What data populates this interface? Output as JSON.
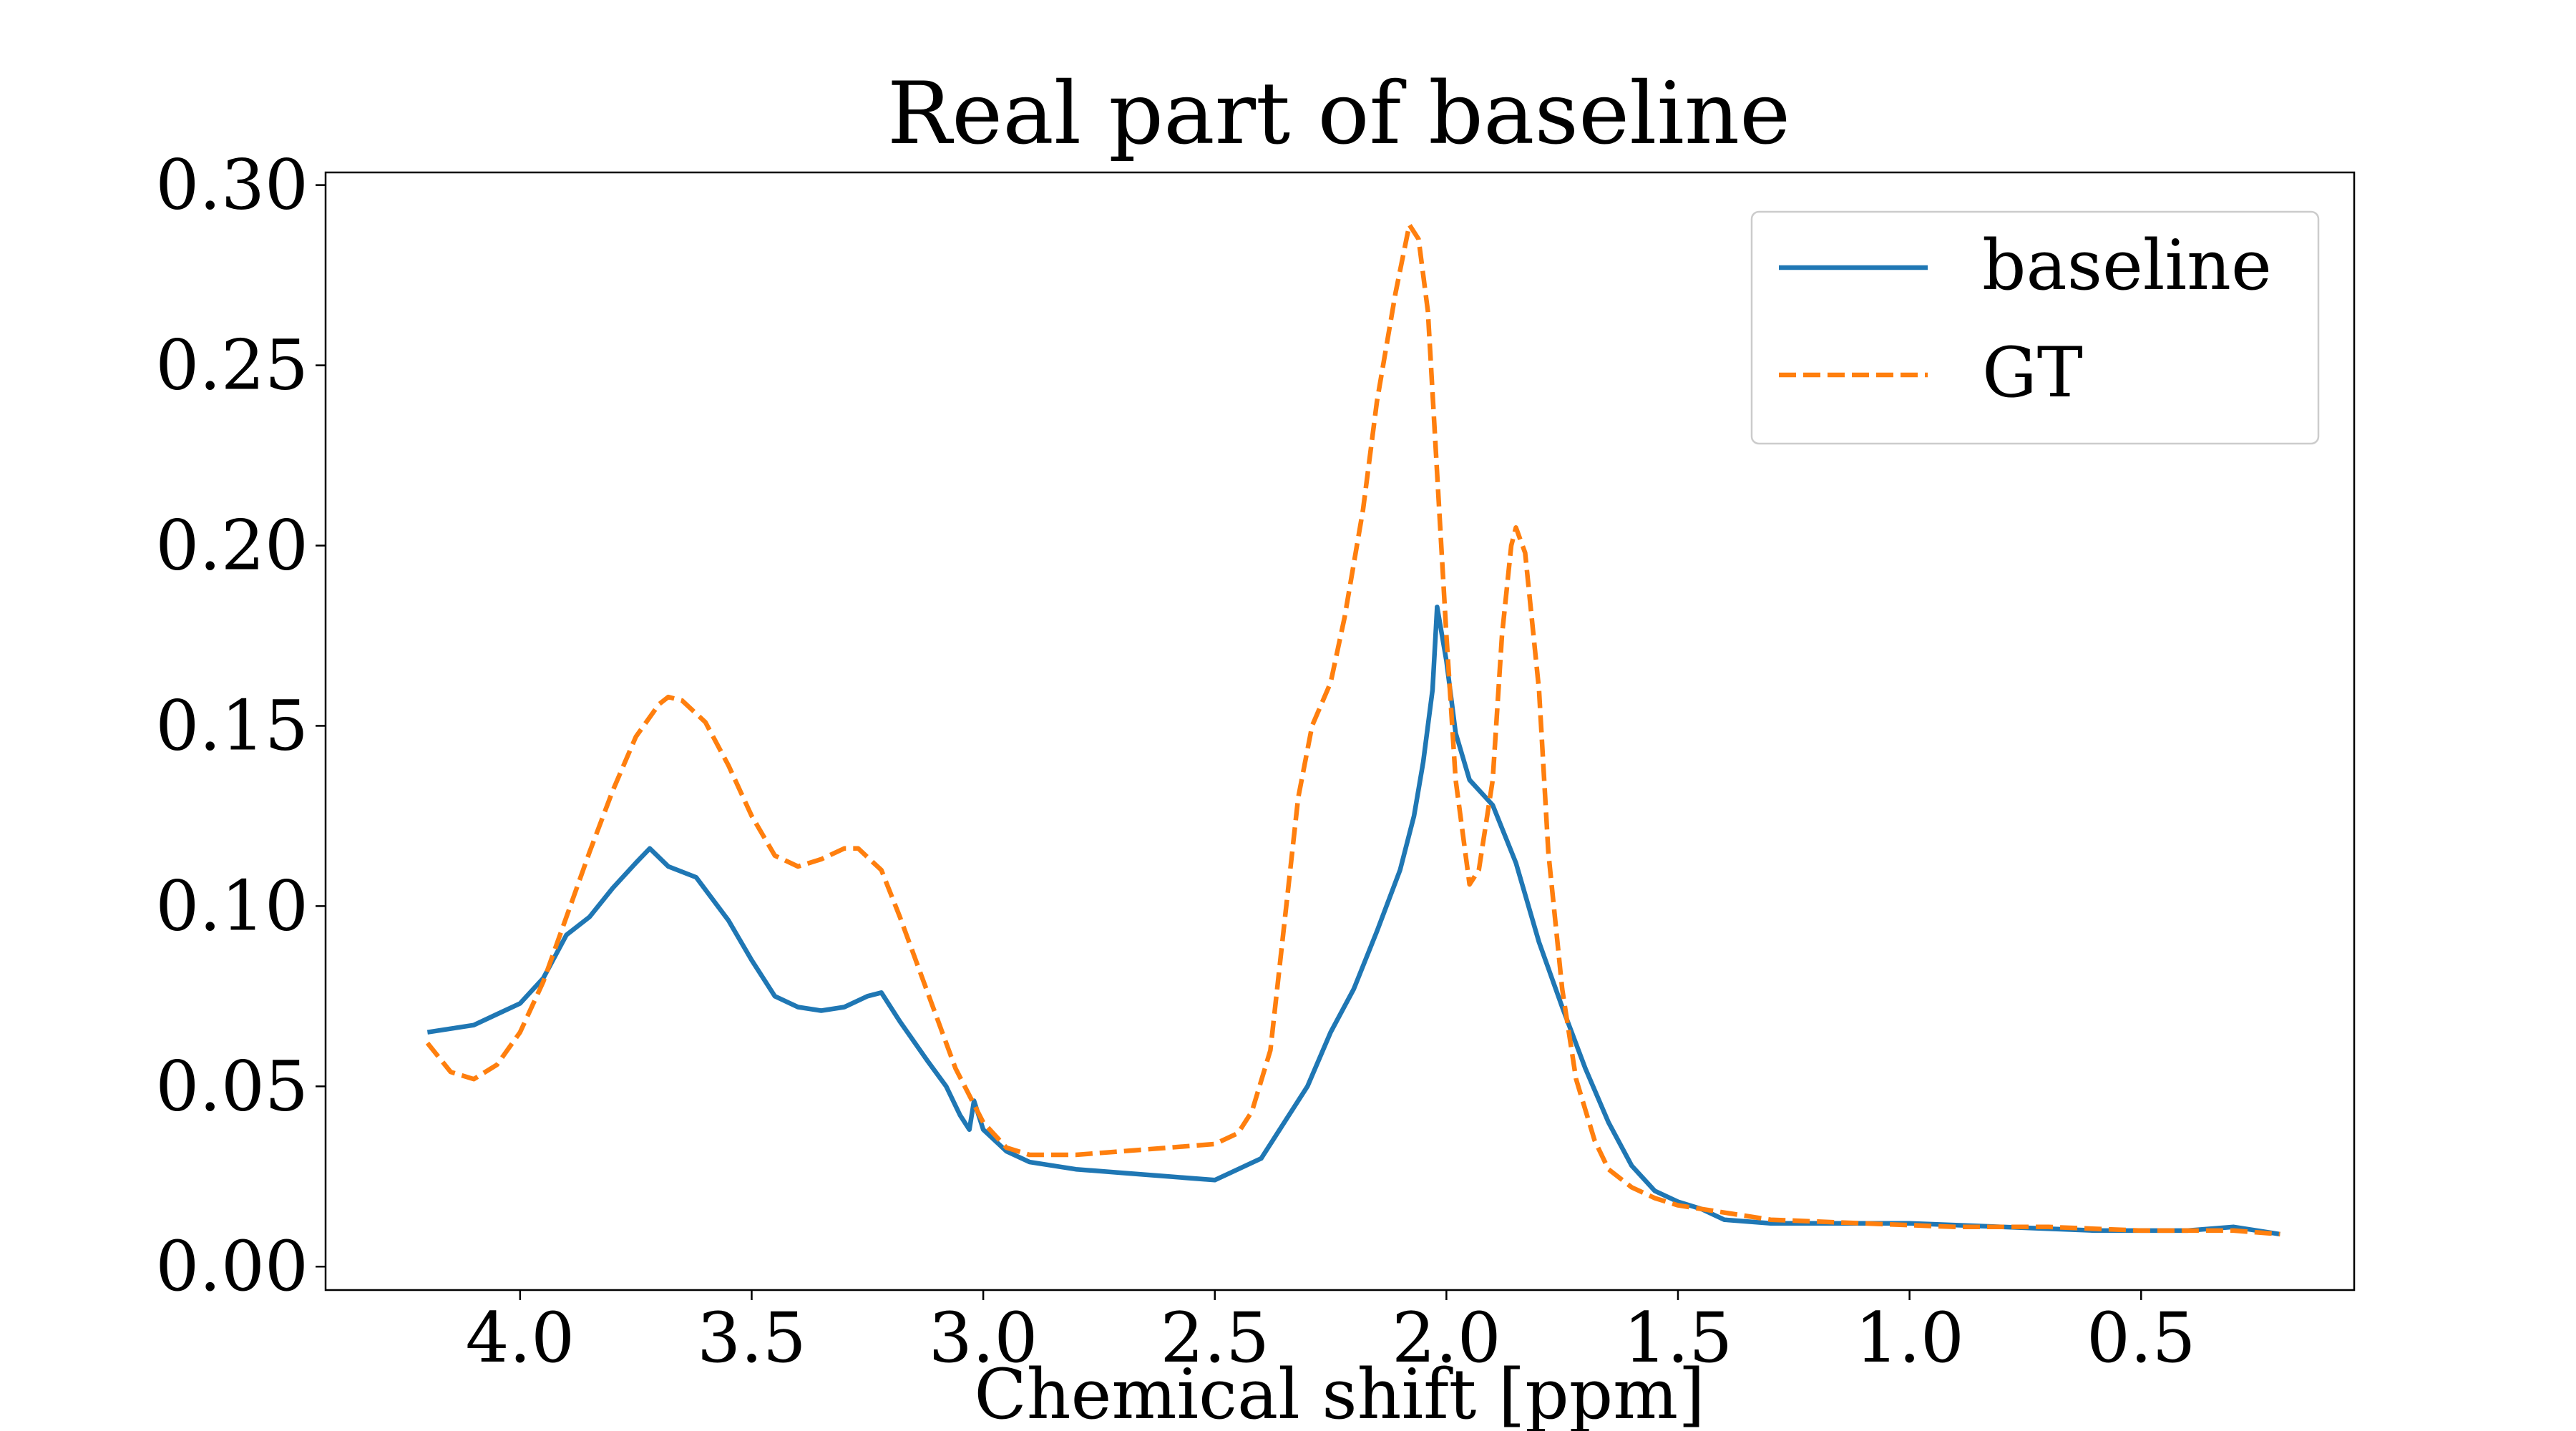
{
  "chart_data": {
    "type": "line",
    "title": "Real part of baseline",
    "xlabel": "Chemical shift [ppm]",
    "ylabel": "",
    "xlim": [
      4.42,
      0.04
    ],
    "ylim": [
      -0.0065,
      0.3035
    ],
    "x_reversed": true,
    "grid": false,
    "legend_position": "top-right",
    "xticks": [
      4.0,
      3.5,
      3.0,
      2.5,
      2.0,
      1.5,
      1.0,
      0.5
    ],
    "xtick_labels": [
      "4.0",
      "3.5",
      "3.0",
      "2.5",
      "2.0",
      "1.5",
      "1.0",
      "0.5"
    ],
    "yticks": [
      0.0,
      0.05,
      0.1,
      0.15,
      0.2,
      0.25,
      0.3
    ],
    "ytick_labels": [
      "0.00",
      "0.05",
      "0.10",
      "0.15",
      "0.20",
      "0.25",
      "0.30"
    ],
    "series": [
      {
        "name": "baseline",
        "color": "#1f77b4",
        "style": "solid",
        "points": [
          [
            4.2,
            0.065
          ],
          [
            4.15,
            0.066
          ],
          [
            4.1,
            0.067
          ],
          [
            4.05,
            0.07
          ],
          [
            4.0,
            0.073
          ],
          [
            3.95,
            0.08
          ],
          [
            3.9,
            0.092
          ],
          [
            3.85,
            0.097
          ],
          [
            3.8,
            0.105
          ],
          [
            3.75,
            0.112
          ],
          [
            3.72,
            0.116
          ],
          [
            3.68,
            0.111
          ],
          [
            3.62,
            0.108
          ],
          [
            3.55,
            0.096
          ],
          [
            3.5,
            0.085
          ],
          [
            3.45,
            0.075
          ],
          [
            3.4,
            0.072
          ],
          [
            3.35,
            0.071
          ],
          [
            3.3,
            0.072
          ],
          [
            3.25,
            0.075
          ],
          [
            3.22,
            0.076
          ],
          [
            3.18,
            0.068
          ],
          [
            3.12,
            0.057
          ],
          [
            3.08,
            0.05
          ],
          [
            3.05,
            0.042
          ],
          [
            3.03,
            0.038
          ],
          [
            3.02,
            0.046
          ],
          [
            3.0,
            0.038
          ],
          [
            2.95,
            0.032
          ],
          [
            2.9,
            0.029
          ],
          [
            2.8,
            0.027
          ],
          [
            2.7,
            0.026
          ],
          [
            2.6,
            0.025
          ],
          [
            2.5,
            0.024
          ],
          [
            2.45,
            0.027
          ],
          [
            2.4,
            0.03
          ],
          [
            2.35,
            0.04
          ],
          [
            2.3,
            0.05
          ],
          [
            2.25,
            0.065
          ],
          [
            2.2,
            0.077
          ],
          [
            2.15,
            0.093
          ],
          [
            2.1,
            0.11
          ],
          [
            2.07,
            0.125
          ],
          [
            2.05,
            0.14
          ],
          [
            2.03,
            0.16
          ],
          [
            2.02,
            0.183
          ],
          [
            2.0,
            0.168
          ],
          [
            1.98,
            0.148
          ],
          [
            1.95,
            0.135
          ],
          [
            1.9,
            0.128
          ],
          [
            1.85,
            0.112
          ],
          [
            1.8,
            0.09
          ],
          [
            1.75,
            0.072
          ],
          [
            1.7,
            0.055
          ],
          [
            1.65,
            0.04
          ],
          [
            1.6,
            0.028
          ],
          [
            1.55,
            0.021
          ],
          [
            1.5,
            0.018
          ],
          [
            1.45,
            0.016
          ],
          [
            1.4,
            0.013
          ],
          [
            1.3,
            0.012
          ],
          [
            1.2,
            0.012
          ],
          [
            1.0,
            0.012
          ],
          [
            0.8,
            0.011
          ],
          [
            0.6,
            0.01
          ],
          [
            0.4,
            0.01
          ],
          [
            0.3,
            0.011
          ],
          [
            0.2,
            0.009
          ]
        ]
      },
      {
        "name": "GT",
        "color": "#ff7f0e",
        "style": "dashed",
        "points": [
          [
            4.2,
            0.062
          ],
          [
            4.15,
            0.054
          ],
          [
            4.1,
            0.052
          ],
          [
            4.05,
            0.056
          ],
          [
            4.0,
            0.065
          ],
          [
            3.95,
            0.079
          ],
          [
            3.9,
            0.097
          ],
          [
            3.85,
            0.115
          ],
          [
            3.8,
            0.132
          ],
          [
            3.75,
            0.147
          ],
          [
            3.7,
            0.156
          ],
          [
            3.68,
            0.158
          ],
          [
            3.65,
            0.157
          ],
          [
            3.6,
            0.151
          ],
          [
            3.55,
            0.139
          ],
          [
            3.5,
            0.125
          ],
          [
            3.45,
            0.114
          ],
          [
            3.4,
            0.111
          ],
          [
            3.35,
            0.113
          ],
          [
            3.3,
            0.116
          ],
          [
            3.27,
            0.116
          ],
          [
            3.22,
            0.11
          ],
          [
            3.18,
            0.097
          ],
          [
            3.12,
            0.076
          ],
          [
            3.06,
            0.055
          ],
          [
            3.0,
            0.04
          ],
          [
            2.95,
            0.033
          ],
          [
            2.9,
            0.031
          ],
          [
            2.8,
            0.031
          ],
          [
            2.7,
            0.032
          ],
          [
            2.6,
            0.033
          ],
          [
            2.5,
            0.034
          ],
          [
            2.45,
            0.037
          ],
          [
            2.42,
            0.043
          ],
          [
            2.38,
            0.06
          ],
          [
            2.35,
            0.095
          ],
          [
            2.32,
            0.13
          ],
          [
            2.29,
            0.15
          ],
          [
            2.25,
            0.162
          ],
          [
            2.22,
            0.18
          ],
          [
            2.18,
            0.21
          ],
          [
            2.15,
            0.24
          ],
          [
            2.11,
            0.27
          ],
          [
            2.08,
            0.289
          ],
          [
            2.06,
            0.285
          ],
          [
            2.04,
            0.265
          ],
          [
            2.02,
            0.22
          ],
          [
            2.0,
            0.175
          ],
          [
            1.98,
            0.135
          ],
          [
            1.95,
            0.106
          ],
          [
            1.93,
            0.11
          ],
          [
            1.9,
            0.135
          ],
          [
            1.88,
            0.175
          ],
          [
            1.86,
            0.2
          ],
          [
            1.85,
            0.205
          ],
          [
            1.83,
            0.198
          ],
          [
            1.8,
            0.16
          ],
          [
            1.78,
            0.115
          ],
          [
            1.75,
            0.077
          ],
          [
            1.72,
            0.052
          ],
          [
            1.68,
            0.035
          ],
          [
            1.65,
            0.027
          ],
          [
            1.6,
            0.022
          ],
          [
            1.55,
            0.019
          ],
          [
            1.5,
            0.017
          ],
          [
            1.4,
            0.015
          ],
          [
            1.3,
            0.013
          ],
          [
            1.1,
            0.012
          ],
          [
            0.9,
            0.011
          ],
          [
            0.7,
            0.011
          ],
          [
            0.5,
            0.01
          ],
          [
            0.3,
            0.01
          ],
          [
            0.2,
            0.009
          ]
        ]
      }
    ]
  }
}
